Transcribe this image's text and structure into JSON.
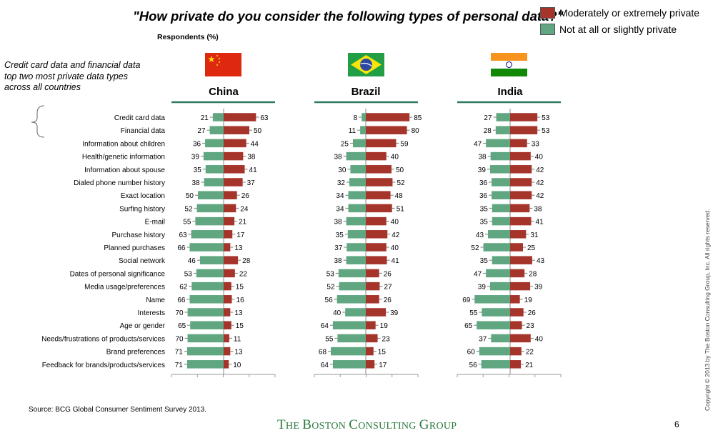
{
  "title": "\"How private do you consider the following types of personal data?\"",
  "subtitle": "Respondents (%)",
  "annotation": "Credit card data and financial data top two most private data types across all countries",
  "legend": [
    {
      "label": "Moderately or extremely private",
      "color": "#a5342b"
    },
    {
      "label": "Not at all or slightly private",
      "color": "#5fa681"
    }
  ],
  "source": "Source: BCG Global Consumer Sentiment Survey 2013.",
  "logo": {
    "the": "The",
    "boston": "Boston",
    "consulting": "Consulting",
    "group": "Group"
  },
  "page_number": "6",
  "copyright": "Copyright © 2013 by The Boston Consulting Group, Inc. All rights reserved.",
  "colors": {
    "private": "#a5342b",
    "not_private": "#5fa681",
    "accent_line": "#2e7a5e"
  },
  "chart_data": {
    "type": "bar",
    "orientation": "diverging-horizontal",
    "categories": [
      "Credit card data",
      "Financial data",
      "Information about children",
      "Health/genetic information",
      "Information about spouse",
      "Dialed phone number history",
      "Exact location",
      "Surfing history",
      "E-mail",
      "Purchase history",
      "Planned purchases",
      "Social network",
      "Dates of personal significance",
      "Media usage/preferences",
      "Name",
      "Interests",
      "Age or gender",
      "Needs/frustrations of products/services",
      "Brand preferences",
      "Feedback for brands/products/services"
    ],
    "panels": [
      {
        "country": "China",
        "flag": "china-flag",
        "not_private": [
          21,
          27,
          36,
          39,
          35,
          38,
          50,
          52,
          55,
          63,
          66,
          46,
          53,
          62,
          66,
          70,
          65,
          70,
          71,
          71
        ],
        "private": [
          63,
          50,
          44,
          38,
          41,
          37,
          26,
          24,
          21,
          17,
          13,
          28,
          22,
          15,
          16,
          13,
          15,
          11,
          13,
          10
        ]
      },
      {
        "country": "Brazil",
        "flag": "brazil-flag",
        "not_private": [
          8,
          11,
          25,
          38,
          30,
          32,
          34,
          34,
          38,
          35,
          37,
          38,
          53,
          52,
          56,
          40,
          64,
          55,
          68,
          64
        ],
        "private": [
          85,
          80,
          59,
          40,
          50,
          52,
          48,
          51,
          40,
          42,
          40,
          41,
          26,
          27,
          26,
          39,
          19,
          23,
          15,
          17
        ]
      },
      {
        "country": "India",
        "flag": "india-flag",
        "not_private": [
          27,
          28,
          47,
          38,
          39,
          36,
          36,
          35,
          35,
          43,
          52,
          35,
          47,
          39,
          69,
          55,
          65,
          37,
          60,
          56
        ],
        "private": [
          53,
          53,
          33,
          40,
          42,
          42,
          42,
          38,
          41,
          31,
          25,
          43,
          28,
          39,
          19,
          26,
          23,
          40,
          22,
          21
        ]
      }
    ]
  }
}
